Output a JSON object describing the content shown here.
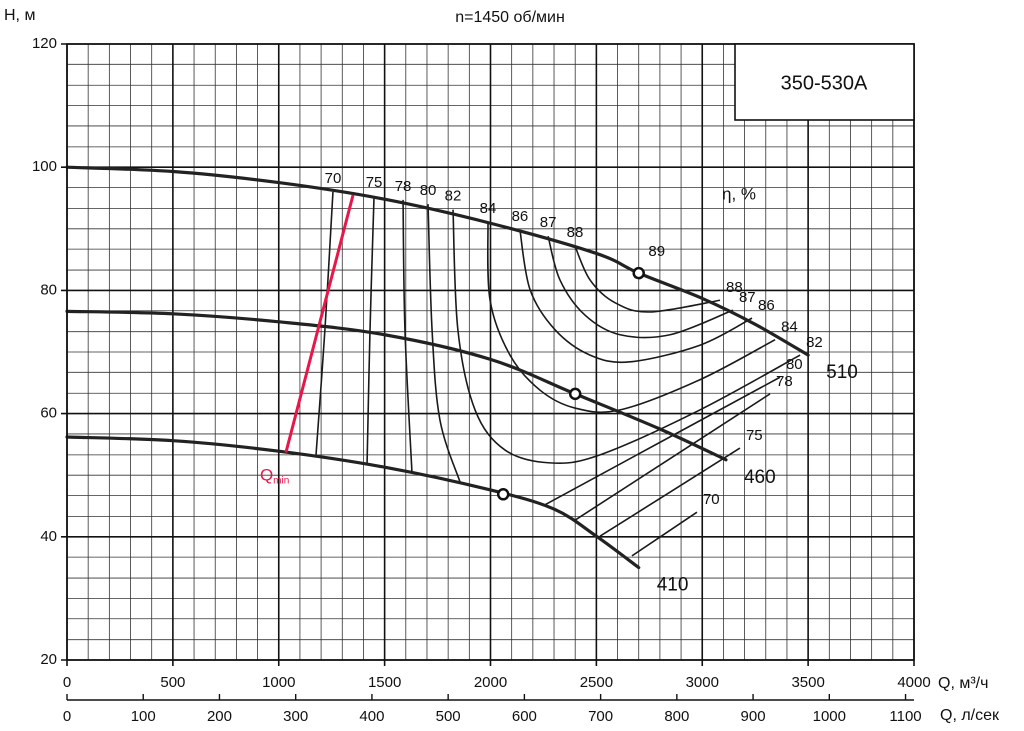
{
  "chart_data": {
    "type": "pump-curve",
    "title": "n=1450 об/мин",
    "model": "350-530A",
    "x_label": "Q, м³/ч",
    "x2_label": "Q, л/сек",
    "y_label": "H, м",
    "efficiency_label": "η, %",
    "xlim": [
      0,
      4000
    ],
    "xticks": [
      0,
      500,
      1000,
      1500,
      2000,
      2500,
      3000,
      3500,
      4000
    ],
    "x2lim": [
      0,
      1111.1
    ],
    "x2ticks": [
      0,
      100,
      200,
      300,
      400,
      500,
      600,
      700,
      800,
      900,
      1000,
      1100
    ],
    "ylim": [
      20,
      120
    ],
    "yticks": [
      20,
      40,
      60,
      80,
      100,
      120
    ],
    "minor_xticks": [
      100,
      200,
      300,
      400,
      600,
      700,
      800,
      900,
      1100,
      1200,
      1300,
      1400,
      1600,
      1700,
      1800,
      1900,
      2100,
      2200,
      2300,
      2400,
      2600,
      2700,
      2800,
      2900,
      3100,
      3200,
      3300,
      3400,
      3600,
      3700,
      3800,
      3900
    ],
    "minor_yticks": [
      23.3,
      26.7,
      30,
      33.3,
      36.7,
      43.3,
      46.7,
      50,
      53.3,
      56.7,
      63.3,
      66.7,
      70,
      73.3,
      76.7,
      83.3,
      86.7,
      90,
      93.3,
      96.7,
      103.3,
      106.7,
      110,
      113.3,
      116.7
    ],
    "grid": true,
    "series": [
      {
        "name": "510",
        "color": "#222222",
        "x": [
          0,
          500,
          1000,
          1500,
          2000,
          2500,
          2700,
          3000,
          3250,
          3500
        ],
        "values": [
          100,
          99.3,
          97.5,
          94.8,
          90.9,
          86.0,
          82.8,
          78.7,
          74.5,
          69.5
        ]
      },
      {
        "name": "460",
        "color": "#222222",
        "x": [
          0,
          500,
          1000,
          1500,
          2000,
          2400,
          2800,
          3112
        ],
        "values": [
          76.6,
          76.2,
          74.9,
          72.8,
          68.8,
          63.2,
          57.5,
          52.5
        ]
      },
      {
        "name": "410",
        "color": "#222222",
        "x": [
          0,
          500,
          1000,
          1500,
          2000,
          2300,
          2500,
          2700
        ],
        "values": [
          56.2,
          55.6,
          53.9,
          51.3,
          47.6,
          44.5,
          40.1,
          35
        ]
      }
    ],
    "bep": {
      "label": "89",
      "x": [
        2700,
        2400,
        2060
      ],
      "values": [
        82.8,
        63.2,
        46.9
      ]
    },
    "efficiency_lines": [
      {
        "name": "70",
        "x": [
          1256,
          1218,
          1176,
          null,
          2668,
          2975
        ],
        "values": [
          96.0,
          73.6,
          53.3,
          null,
          36.9,
          44.0
        ]
      },
      {
        "name": "75",
        "x": [
          1450,
          1431,
          1417,
          null,
          2517,
          3178
        ],
        "values": [
          95.3,
          73.6,
          51.7,
          null,
          40.1,
          54.4
        ]
      },
      {
        "name": "78",
        "x": [
          1587,
          1596,
          1629,
          null,
          2399,
          3320
        ],
        "values": [
          94.7,
          73.6,
          50.5,
          null,
          42.7,
          63.2
        ]
      },
      {
        "name": "80",
        "x": [
          1705,
          1724,
          1761,
          1856,
          null,
          2257,
          3367
        ],
        "values": [
          94.0,
          73.6,
          59.0,
          48.9,
          null,
          45.2,
          65.9
        ]
      },
      {
        "name": "82",
        "x": [
          1823,
          1846,
          1927,
          2068,
          2281,
          2517,
          2989,
          3462
        ],
        "values": [
          93.1,
          73.6,
          60.6,
          54.1,
          52.0,
          53.3,
          60.6,
          69.5
        ]
      },
      {
        "name": "84",
        "x": [
          1988,
          1998,
          2092,
          2234,
          2399,
          2612,
          2989,
          3344
        ],
        "values": [
          91.1,
          78.4,
          69.5,
          63.8,
          60.9,
          60.6,
          65.5,
          72.0
        ]
      },
      {
        "name": "86",
        "x": [
          2139,
          2187,
          2305,
          2470,
          2659,
          2989,
          3235
        ],
        "values": [
          89.8,
          80.1,
          73.6,
          69.5,
          68.4,
          71.1,
          75.5
        ]
      },
      {
        "name": "87",
        "x": [
          2272,
          2328,
          2446,
          2612,
          2848,
          3145
        ],
        "values": [
          88.8,
          81.7,
          76.0,
          72.8,
          72.8,
          76.8
        ]
      },
      {
        "name": "88",
        "x": [
          2399,
          2470,
          2588,
          2753,
          3084
        ],
        "values": [
          87.2,
          81.7,
          78.0,
          76.5,
          78.4
        ]
      }
    ],
    "qmin": {
      "label": "Q",
      "subscript": "min",
      "color": "#e8174a",
      "x": [
        1034,
        1351
      ],
      "values": [
        53.7,
        95.5
      ]
    }
  }
}
